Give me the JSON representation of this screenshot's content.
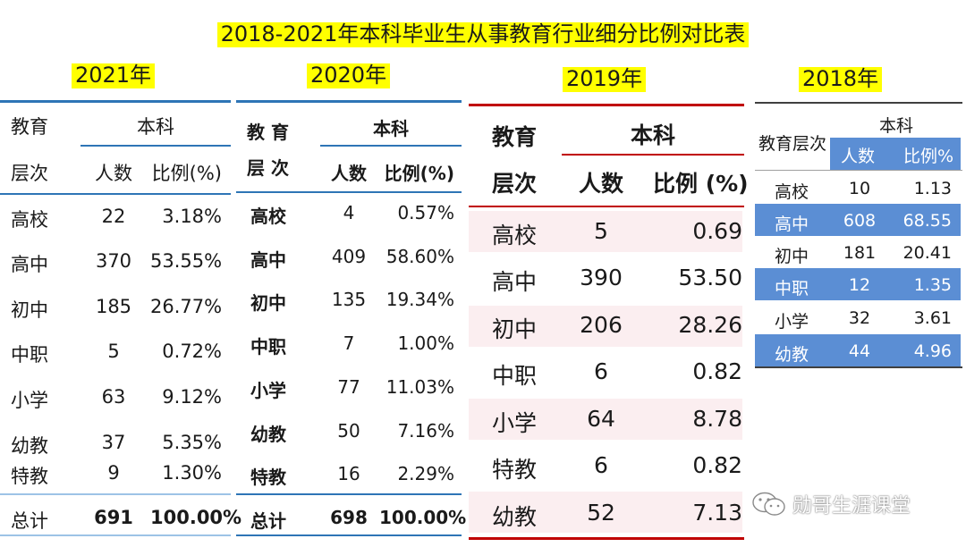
{
  "title": "2018-2021年本科毕业生从事教育行业细分比例对比表",
  "tables": {
    "y2021": {
      "year": "2021年",
      "header_level_1": "教育",
      "header_level_2": "层次",
      "header_group": "本科",
      "header_count": "人数",
      "header_pct": "比例(%)",
      "rows": [
        {
          "label": "高校",
          "count": "22",
          "pct": "3.18%"
        },
        {
          "label": "高中",
          "count": "370",
          "pct": "53.55%"
        },
        {
          "label": "初中",
          "count": "185",
          "pct": "26.77%"
        },
        {
          "label": "中职",
          "count": "5",
          "pct": "0.72%"
        },
        {
          "label": "小学",
          "count": "63",
          "pct": "9.12%"
        },
        {
          "label": "幼教",
          "count": "37",
          "pct": "5.35%"
        },
        {
          "label": "特教",
          "count": "9",
          "pct": "1.30%"
        }
      ],
      "total": {
        "label": "总计",
        "count": "691",
        "pct": "100.00%"
      }
    },
    "y2020": {
      "year": "2020年",
      "header_level_1": "教 育",
      "header_level_2": "层 次",
      "header_group": "本科",
      "header_count": "人数",
      "header_pct": "比例(%)",
      "rows": [
        {
          "label": "高校",
          "count": "4",
          "pct": "0.57%"
        },
        {
          "label": "高中",
          "count": "409",
          "pct": "58.60%"
        },
        {
          "label": "初中",
          "count": "135",
          "pct": "19.34%"
        },
        {
          "label": "中职",
          "count": "7",
          "pct": "1.00%"
        },
        {
          "label": "小学",
          "count": "77",
          "pct": "11.03%"
        },
        {
          "label": "幼教",
          "count": "50",
          "pct": "7.16%"
        },
        {
          "label": "特教",
          "count": "16",
          "pct": "2.29%"
        }
      ],
      "total": {
        "label": "总计",
        "count": "698",
        "pct": "100.00%"
      }
    },
    "y2019": {
      "year": "2019年",
      "header_level_1": "教育",
      "header_level_2": "层次",
      "header_group": "本科",
      "header_count": "人数",
      "header_pct": "比例 (%)",
      "rows": [
        {
          "label": "高校",
          "count": "5",
          "pct": "0.69"
        },
        {
          "label": "高中",
          "count": "390",
          "pct": "53.50"
        },
        {
          "label": "初中",
          "count": "206",
          "pct": "28.26"
        },
        {
          "label": "中职",
          "count": "6",
          "pct": "0.82"
        },
        {
          "label": "小学",
          "count": "64",
          "pct": "8.78"
        },
        {
          "label": "特教",
          "count": "6",
          "pct": "0.82"
        },
        {
          "label": "幼教",
          "count": "52",
          "pct": "7.13"
        }
      ]
    },
    "y2018": {
      "year": "2018年",
      "header_level": "教育层次",
      "header_group": "本科",
      "header_count": "人数",
      "header_pct": "比例%",
      "rows": [
        {
          "label": "高校",
          "count": "10",
          "pct": "1.13"
        },
        {
          "label": "高中",
          "count": "608",
          "pct": "68.55"
        },
        {
          "label": "初中",
          "count": "181",
          "pct": "20.41"
        },
        {
          "label": "中职",
          "count": "12",
          "pct": "1.35"
        },
        {
          "label": "小学",
          "count": "32",
          "pct": "3.61"
        },
        {
          "label": "幼教",
          "count": "44",
          "pct": "4.96"
        }
      ]
    }
  },
  "watermark": {
    "text": "勋哥生涯课堂",
    "icon": "wechat-icon"
  },
  "colors": {
    "highlight": "#ffff00",
    "line_2021": "#2e75b6",
    "line_2020": "#2e75b6",
    "line_2019": "#c00000",
    "band_2019": "#fbeef0",
    "band_2018": "#5b8ed4"
  }
}
